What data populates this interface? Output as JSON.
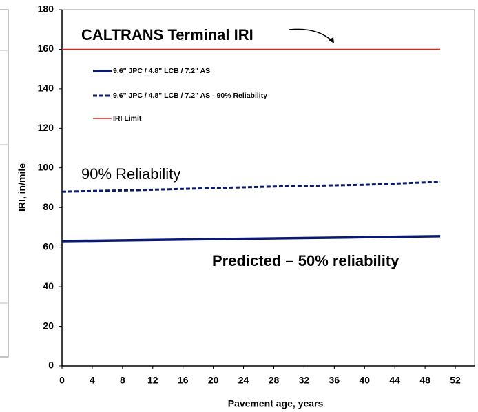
{
  "chart_data": {
    "type": "line",
    "xlabel": "Pavement age, years",
    "ylabel": "IRI, in/mile",
    "x": [
      0,
      10,
      20,
      30,
      40,
      50
    ],
    "series": [
      {
        "name": "9.6\" JPC / 4.8\" LCB / 7.2\" AS",
        "color": "#0a1a6e",
        "line_style": "solid",
        "values": [
          63,
          63.5,
          64,
          64.5,
          65,
          65.5
        ]
      },
      {
        "name": "9.6\" JPC / 4.8\" LCB / 7.2\" AS - 90% Reliability",
        "color": "#0a1a6e",
        "line_style": "dashed",
        "values": [
          88,
          88.8,
          89.8,
          90.8,
          91.5,
          93
        ]
      },
      {
        "name": "IRI Limit",
        "color": "#e0231a",
        "line_style": "thin",
        "values": [
          160,
          160,
          160,
          160,
          160,
          160
        ]
      }
    ],
    "annotations": [
      "CALTRANS Terminal IRI",
      "90% Reliability",
      "Predicted – 50% reliability"
    ],
    "xlim": [
      0,
      54
    ],
    "xticks": [
      0,
      4,
      8,
      12,
      16,
      20,
      24,
      28,
      32,
      36,
      40,
      44,
      48,
      52
    ],
    "ylim": [
      0,
      180
    ],
    "yticks": [
      0,
      20,
      40,
      60,
      80,
      100,
      120,
      140,
      160,
      180
    ],
    "grid": false
  }
}
